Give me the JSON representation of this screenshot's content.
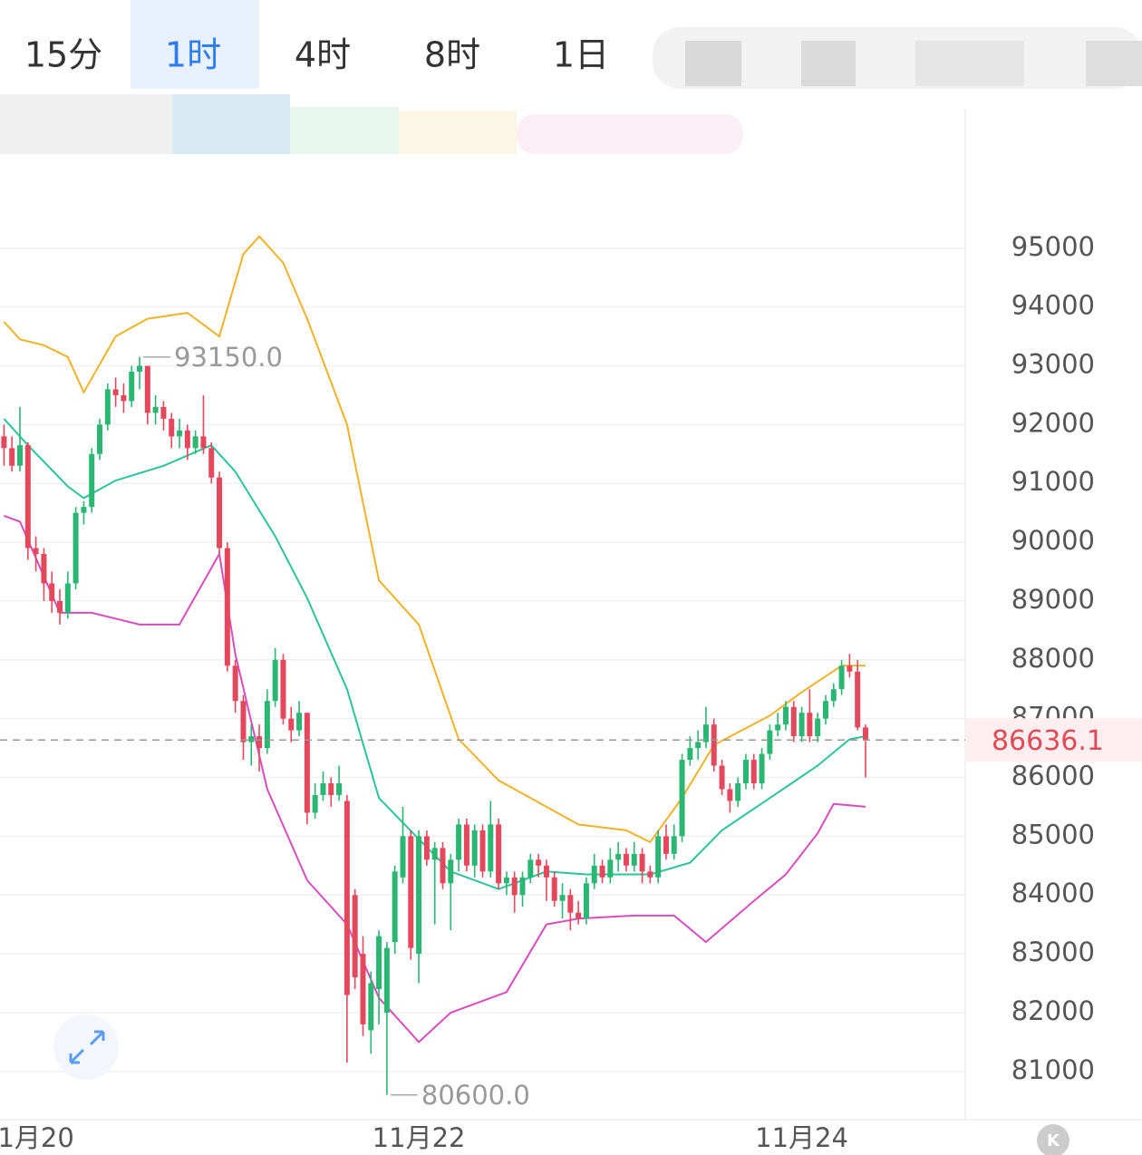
{
  "tabs": [
    "15分",
    "1时",
    "4时",
    "8时",
    "1日"
  ],
  "selected_tab": 1,
  "chart_data": {
    "type": "candlestick",
    "up_color": "#2bb673",
    "down_color": "#e4485c",
    "xlim": [
      -0.5,
      120.5
    ],
    "xticks": [
      {
        "value": 4,
        "label": "1月20"
      },
      {
        "value": 52,
        "label": "11月22"
      },
      {
        "value": 100,
        "label": "11月24"
      }
    ],
    "ylim": [
      80180,
      96600
    ],
    "yticks": [
      81000,
      82000,
      83000,
      84000,
      85000,
      86000,
      87000,
      88000,
      89000,
      90000,
      91000,
      92000,
      93000,
      94000,
      95000
    ],
    "grid": true,
    "last_price": 86636.1,
    "max_label": {
      "value": 93150,
      "label": "93150.0"
    },
    "min_label": {
      "value": 80600,
      "label": "80600.0"
    },
    "open": [
      91800,
      91600,
      91300,
      91650,
      89900,
      89800,
      89300,
      89000,
      88800,
      89300,
      90500,
      90600,
      91500,
      92000,
      92600,
      92500,
      92400,
      92900,
      93000,
      92200,
      92300,
      92100,
      91800,
      91900,
      91600,
      91800,
      91600,
      91100,
      89900,
      87900,
      87300,
      86600,
      86700,
      86500,
      87300,
      88000,
      87000,
      86800,
      87100,
      85400,
      85700,
      85900,
      85700,
      85600,
      84000,
      83000,
      81700,
      82400,
      82000,
      83200,
      84300,
      85000,
      83000,
      85000,
      84600,
      84800,
      84200,
      84600,
      85200,
      84500,
      85100,
      84400,
      85200,
      84200,
      84300,
      84000,
      84300,
      84600,
      84500,
      84300,
      83900,
      84000,
      83700,
      83600,
      84200,
      84500,
      84300,
      84600,
      84700,
      84500,
      84700,
      84400,
      84300,
      85000,
      84700,
      85000,
      86300,
      86500,
      86600,
      86900,
      86200,
      85800,
      85600,
      85900,
      86300,
      85900,
      86400,
      86800,
      86900,
      87200,
      86700,
      87100,
      86700,
      87000,
      87300,
      87500,
      87900,
      87800,
      86850
    ],
    "high": [
      92000,
      91800,
      92300,
      91700,
      90100,
      89900,
      89500,
      89200,
      89500,
      90600,
      90700,
      91600,
      92100,
      92700,
      92800,
      92700,
      93000,
      93150,
      93000,
      92500,
      92400,
      92200,
      92100,
      92000,
      91900,
      92500,
      91700,
      91200,
      90000,
      88000,
      87400,
      86900,
      86900,
      87500,
      88200,
      88100,
      87200,
      87300,
      87100,
      85900,
      86100,
      86000,
      86200,
      85700,
      84100,
      83300,
      82700,
      83400,
      83200,
      84500,
      85500,
      85100,
      85100,
      85100,
      84900,
      84900,
      84700,
      85300,
      85300,
      85200,
      85200,
      85600,
      85300,
      84400,
      84400,
      84400,
      84700,
      84700,
      84600,
      84400,
      84200,
      84100,
      83900,
      84300,
      84700,
      84600,
      84800,
      84900,
      84800,
      84900,
      84800,
      84500,
      85100,
      85200,
      85200,
      86400,
      86700,
      86800,
      87200,
      87000,
      86300,
      85900,
      86000,
      86400,
      86400,
      86500,
      86900,
      87100,
      87300,
      87300,
      87200,
      87500,
      87100,
      87400,
      87600,
      88000,
      88100,
      88000,
      86900
    ],
    "low": [
      91300,
      91200,
      91200,
      89700,
      89500,
      89000,
      88800,
      88600,
      88700,
      89200,
      90300,
      90500,
      91400,
      91900,
      92300,
      92200,
      92300,
      92600,
      92000,
      92000,
      91900,
      91600,
      91600,
      91400,
      91500,
      91500,
      91000,
      89800,
      87800,
      87100,
      86300,
      86200,
      86100,
      86400,
      87200,
      86900,
      86600,
      86700,
      85200,
      85300,
      85600,
      85500,
      85600,
      81150,
      82400,
      81600,
      81300,
      81800,
      80600,
      83000,
      84200,
      82900,
      82500,
      84500,
      83500,
      84100,
      83400,
      84400,
      84400,
      84300,
      84300,
      84300,
      84100,
      84000,
      83700,
      83800,
      84200,
      84300,
      83900,
      83800,
      83600,
      83400,
      83500,
      83500,
      84100,
      84200,
      84200,
      84400,
      84400,
      84400,
      84200,
      84200,
      84200,
      84600,
      84600,
      84900,
      86200,
      86300,
      86500,
      86100,
      85700,
      85400,
      85500,
      85800,
      85800,
      85800,
      86300,
      86700,
      86800,
      86600,
      86600,
      86600,
      86600,
      86900,
      87200,
      87400,
      87700,
      86800,
      86000
    ],
    "close": [
      91600,
      91300,
      91650,
      89900,
      89800,
      89300,
      89000,
      88800,
      89300,
      90500,
      90600,
      91500,
      92000,
      92600,
      92500,
      92400,
      92900,
      93000,
      92200,
      92300,
      92100,
      91800,
      91900,
      91600,
      91800,
      91600,
      91100,
      89900,
      87900,
      87300,
      86600,
      86700,
      86500,
      87300,
      88000,
      87000,
      86800,
      87100,
      85400,
      85700,
      85900,
      85700,
      85900,
      82300,
      82600,
      81800,
      82500,
      83300,
      83100,
      84400,
      85000,
      83100,
      85000,
      84600,
      84800,
      84200,
      84600,
      85200,
      84500,
      85100,
      84400,
      85200,
      84200,
      84300,
      84000,
      84300,
      84600,
      84500,
      84300,
      83900,
      84000,
      83700,
      83600,
      84200,
      84500,
      84300,
      84600,
      84700,
      84500,
      84700,
      84400,
      84300,
      85000,
      84700,
      85000,
      86300,
      86500,
      86600,
      86900,
      86200,
      85800,
      85600,
      85900,
      86300,
      85900,
      86400,
      86800,
      86900,
      87200,
      86700,
      87100,
      86700,
      87000,
      87300,
      87500,
      87900,
      87800,
      86850,
      86636.1
    ],
    "bands": [
      {
        "color": "#eeb32a",
        "x": [
          0,
          2,
          5,
          8,
          10,
          14,
          18,
          23,
          27,
          30,
          32,
          35,
          38,
          43,
          47,
          52,
          57,
          62,
          68,
          72,
          78,
          81,
          85,
          89,
          96,
          100,
          105,
          108
        ],
        "values": [
          93750,
          93450,
          93350,
          93150,
          92550,
          93500,
          93800,
          93900,
          93500,
          94900,
          95200,
          94750,
          93800,
          92000,
          89350,
          88600,
          86650,
          85950,
          85500,
          85200,
          85100,
          84900,
          85650,
          86550,
          87050,
          87450,
          87900,
          87900
        ]
      },
      {
        "color": "#2cc39c",
        "x": [
          0,
          3,
          8,
          10,
          14,
          20,
          26,
          29,
          34,
          38,
          43,
          47,
          52,
          56,
          62,
          68,
          73,
          81,
          86,
          90,
          96,
          102,
          106,
          108
        ],
        "values": [
          92100,
          91650,
          90950,
          90750,
          91050,
          91300,
          91650,
          91200,
          90100,
          89050,
          87500,
          85650,
          84950,
          84400,
          84100,
          84400,
          84350,
          84350,
          84550,
          85100,
          85650,
          86200,
          86650,
          86700
        ]
      },
      {
        "color": "#d64dbd",
        "x": [
          0,
          2,
          7,
          11,
          17,
          22,
          27,
          29,
          33,
          38,
          43,
          47,
          52,
          56,
          63,
          68,
          72,
          79,
          84,
          88,
          94,
          98,
          102,
          104,
          108
        ],
        "values": [
          90450,
          90350,
          88800,
          88800,
          88600,
          88600,
          89800,
          88100,
          85800,
          84250,
          83500,
          82250,
          81500,
          82000,
          82350,
          83500,
          83600,
          83650,
          83650,
          83200,
          83900,
          84350,
          85050,
          85550,
          85500
        ]
      }
    ]
  }
}
